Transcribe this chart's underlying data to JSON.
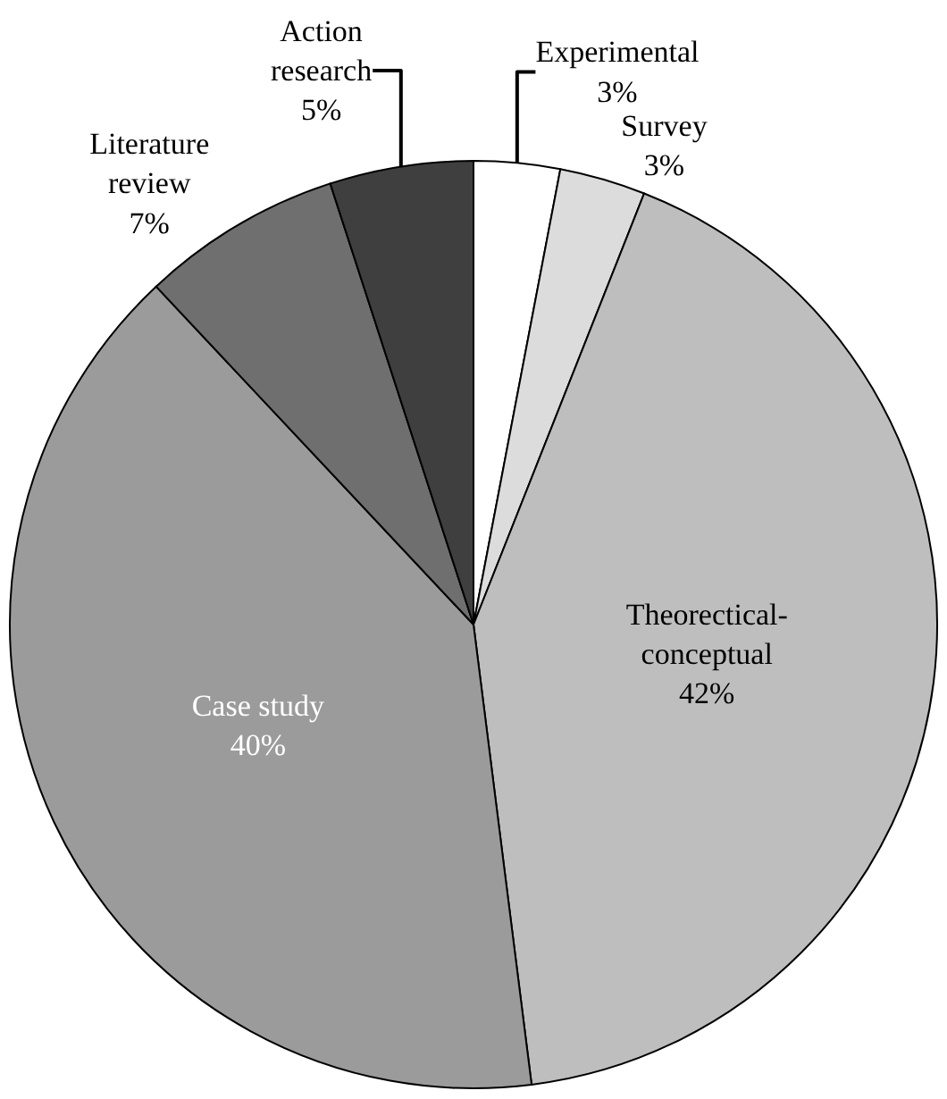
{
  "chart_data": {
    "type": "pie",
    "categories": [
      "Experimental",
      "Survey",
      "Theorectical-\nconceptual",
      "Case study",
      "Literature\nreview",
      "Action\nresearch"
    ],
    "values": [
      3,
      3,
      42,
      40,
      7,
      5
    ],
    "value_labels": [
      "3%",
      "3%",
      "42%",
      "40%",
      "7%",
      "5%"
    ],
    "colors": [
      "#ffffff",
      "#dcdcdc",
      "#bebebe",
      "#9b9b9b",
      "#6f6f6f",
      "#3f3f3f"
    ],
    "legend": false
  }
}
